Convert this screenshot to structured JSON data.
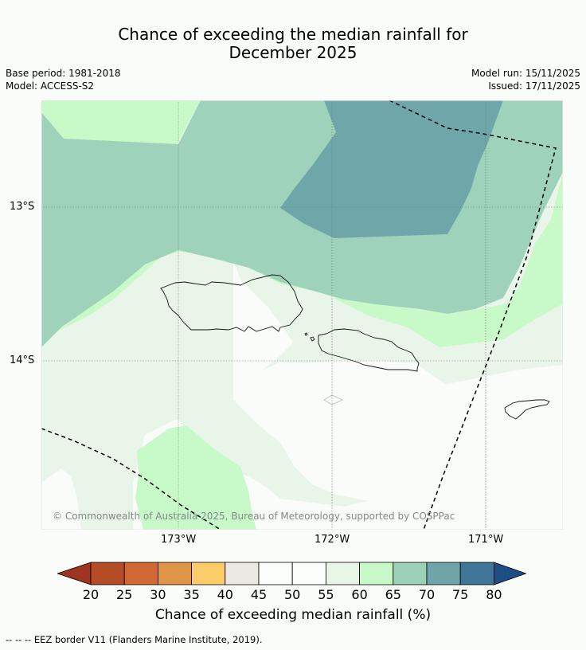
{
  "title": {
    "line1": "Chance of exceeding the median rainfall for",
    "line2": "December 2025"
  },
  "meta": {
    "base_period": "Base period: 1981-2018",
    "model": "Model: ACCESS-S2",
    "model_run": "Model run: 15/11/2025",
    "issued": "Issued: 17/11/2025"
  },
  "map": {
    "latitude_labels": [
      "13°S",
      "14°S"
    ],
    "longitude_labels": [
      "173°W",
      "172°W",
      "171°W"
    ],
    "copyright": "© Commonwealth of Australia 2025, Bureau of Meteorology, supported by COSPPac"
  },
  "colorbar": {
    "ticks": [
      "20",
      "25",
      "30",
      "35",
      "40",
      "45",
      "50",
      "55",
      "60",
      "65",
      "70",
      "75",
      "80"
    ],
    "label": "Chance of exceeding median rainfall (%)",
    "colors": [
      "#9c3520",
      "#b44c26",
      "#cf6831",
      "#e09446",
      "#fdcc6a",
      "#eae9e4",
      "#fbfdfb",
      "#fbfdfb",
      "#e8f6e8",
      "#c8f8c8",
      "#9dd0b8",
      "#6fa4a8",
      "#3f7597",
      "#1e4e86"
    ]
  },
  "legend": {
    "eez_line_symbol": "-- -- --",
    "eez_text": "EEZ border V11 (Flanders Marine Institute, 2019)."
  }
}
